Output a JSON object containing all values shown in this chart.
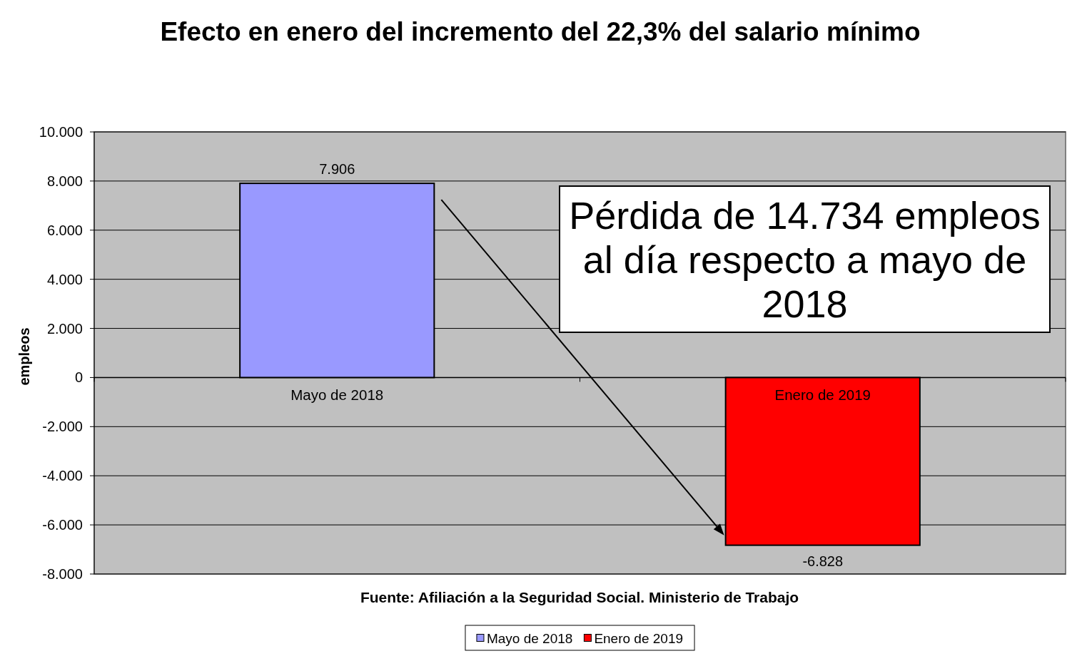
{
  "chart_data": {
    "type": "bar",
    "title": "Efecto en enero del incremento del 22,3% del salario mínimo",
    "ylabel": "empleos",
    "categories": [
      "Mayo de 2018",
      "Enero de 2019"
    ],
    "series": [
      {
        "name": "Mayo de 2018",
        "color": "#9999ff",
        "values": [
          7906,
          null
        ],
        "value_labels": [
          "7.906",
          null
        ]
      },
      {
        "name": "Enero de 2019",
        "color": "#ff0000",
        "values": [
          null,
          -6828
        ],
        "value_labels": [
          null,
          "-6.828"
        ]
      }
    ],
    "stacked": true,
    "ylim": [
      -8000,
      10000
    ],
    "yticks": [
      {
        "value": -8000,
        "label": "-8.000"
      },
      {
        "value": -6000,
        "label": "-6.000"
      },
      {
        "value": -4000,
        "label": "-4.000"
      },
      {
        "value": -2000,
        "label": "-2.000"
      },
      0,
      {
        "value": 2000,
        "label": "2.000"
      },
      {
        "value": 4000,
        "label": "4.000"
      },
      {
        "value": 6000,
        "label": "6.000"
      },
      {
        "value": 8000,
        "label": "8.000"
      },
      {
        "value": 10000,
        "label": "10.000"
      }
    ],
    "grid": "y",
    "legend": "bottom",
    "annotations": [
      "Pérdida de 14.734 empleos al día respecto a mayo de 2018",
      "Fuente: Afiliación a la Seguridad Social. Ministerio de Trabajo"
    ]
  }
}
